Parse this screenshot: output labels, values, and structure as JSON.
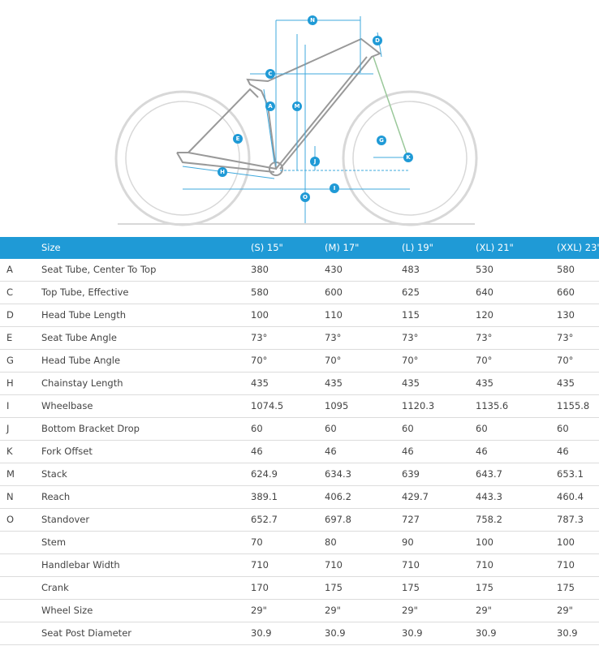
{
  "diagram": {
    "labels": [
      "N",
      "D",
      "C",
      "M",
      "A",
      "E",
      "G",
      "K",
      "H",
      "J",
      "I",
      "O"
    ]
  },
  "table": {
    "header": [
      "Size",
      "(S) 15\"",
      "(M) 17\"",
      "(L) 19\"",
      "(XL) 21\"",
      "(XXL) 23\""
    ],
    "rows": [
      {
        "letter": "A",
        "name": "Seat Tube, Center To Top",
        "values": [
          "380",
          "430",
          "483",
          "530",
          "580"
        ]
      },
      {
        "letter": "C",
        "name": "Top Tube, Effective",
        "values": [
          "580",
          "600",
          "625",
          "640",
          "660"
        ]
      },
      {
        "letter": "D",
        "name": "Head Tube Length",
        "values": [
          "100",
          "110",
          "115",
          "120",
          "130"
        ]
      },
      {
        "letter": "E",
        "name": "Seat Tube Angle",
        "values": [
          "73°",
          "73°",
          "73°",
          "73°",
          "73°"
        ]
      },
      {
        "letter": "G",
        "name": "Head Tube Angle",
        "values": [
          "70°",
          "70°",
          "70°",
          "70°",
          "70°"
        ]
      },
      {
        "letter": "H",
        "name": "Chainstay Length",
        "values": [
          "435",
          "435",
          "435",
          "435",
          "435"
        ]
      },
      {
        "letter": "I",
        "name": "Wheelbase",
        "values": [
          "1074.5",
          "1095",
          "1120.3",
          "1135.6",
          "1155.8"
        ]
      },
      {
        "letter": "J",
        "name": "Bottom Bracket Drop",
        "values": [
          "60",
          "60",
          "60",
          "60",
          "60"
        ]
      },
      {
        "letter": "K",
        "name": "Fork Offset",
        "values": [
          "46",
          "46",
          "46",
          "46",
          "46"
        ]
      },
      {
        "letter": "M",
        "name": "Stack",
        "values": [
          "624.9",
          "634.3",
          "639",
          "643.7",
          "653.1"
        ]
      },
      {
        "letter": "N",
        "name": "Reach",
        "values": [
          "389.1",
          "406.2",
          "429.7",
          "443.3",
          "460.4"
        ]
      },
      {
        "letter": "O",
        "name": "Standover",
        "values": [
          "652.7",
          "697.8",
          "727",
          "758.2",
          "787.3"
        ]
      },
      {
        "name": "Stem",
        "values": [
          "70",
          "80",
          "90",
          "100",
          "100"
        ]
      },
      {
        "name": "Handlebar Width",
        "values": [
          "710",
          "710",
          "710",
          "710",
          "710"
        ]
      },
      {
        "name": "Crank",
        "values": [
          "170",
          "175",
          "175",
          "175",
          "175"
        ]
      },
      {
        "name": "Wheel Size",
        "values": [
          "29\"",
          "29\"",
          "29\"",
          "29\"",
          "29\""
        ]
      },
      {
        "name": "Seat Post Diameter",
        "values": [
          "30.9",
          "30.9",
          "30.9",
          "30.9",
          "30.9"
        ]
      }
    ]
  }
}
